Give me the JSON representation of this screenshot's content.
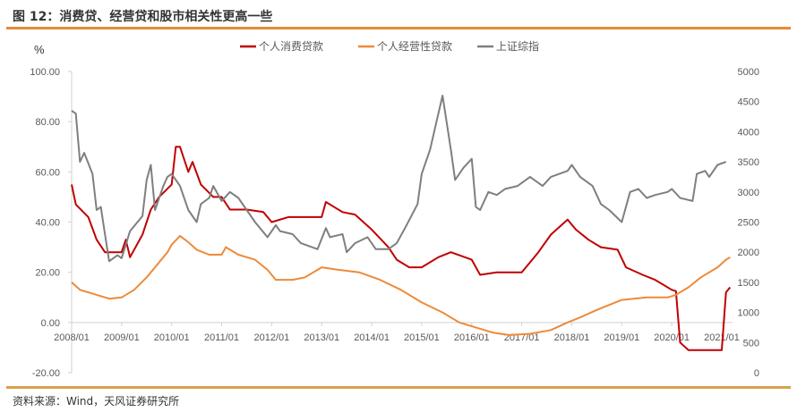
{
  "title": "图 12：消费贷、经营贷和股市相关性更高一些",
  "source": "资料来源：Wind，天风证券研究所",
  "chart_data": {
    "type": "line",
    "ylabel": "%",
    "ylim": [
      -20,
      100
    ],
    "y2lim": [
      0,
      5000
    ],
    "yticks": [
      "100.00",
      "80.00",
      "60.00",
      "40.00",
      "20.00",
      "0.00",
      "-20.00"
    ],
    "y2ticks": [
      "5000",
      "4500",
      "4000",
      "3500",
      "3000",
      "2500",
      "2000",
      "1500",
      "1000",
      "500",
      "0"
    ],
    "xticks": [
      "2008/01",
      "2009/01",
      "2010/01",
      "2011/01",
      "2012/01",
      "2013/01",
      "2014/01",
      "2015/01",
      "2016/01",
      "2017/01",
      "2018/01",
      "2019/01",
      "2020/01",
      "2021/01"
    ],
    "grid": false,
    "legend_position": "top",
    "series": [
      {
        "name": "个人消费贷款",
        "axis": "left",
        "color": "#c00000",
        "points": [
          [
            "2008/01",
            55
          ],
          [
            "2008/02",
            47
          ],
          [
            "2008/05",
            42
          ],
          [
            "2008/07",
            33
          ],
          [
            "2008/09",
            28
          ],
          [
            "2009/01",
            28
          ],
          [
            "2009/02",
            33
          ],
          [
            "2009/03",
            26
          ],
          [
            "2009/06",
            35
          ],
          [
            "2009/08",
            45
          ],
          [
            "2009/10",
            50
          ],
          [
            "2010/01",
            55
          ],
          [
            "2010/02",
            70
          ],
          [
            "2010/03",
            70
          ],
          [
            "2010/05",
            60
          ],
          [
            "2010/06",
            64
          ],
          [
            "2010/08",
            55
          ],
          [
            "2010/11",
            50
          ],
          [
            "2011/01",
            50
          ],
          [
            "2011/03",
            45
          ],
          [
            "2011/07",
            45
          ],
          [
            "2011/11",
            44
          ],
          [
            "2012/01",
            40
          ],
          [
            "2012/05",
            42
          ],
          [
            "2012/08",
            42
          ],
          [
            "2013/01",
            42
          ],
          [
            "2013/02",
            48
          ],
          [
            "2013/06",
            44
          ],
          [
            "2013/09",
            43
          ],
          [
            "2014/01",
            37
          ],
          [
            "2014/05",
            30
          ],
          [
            "2014/07",
            25
          ],
          [
            "2014/10",
            22
          ],
          [
            "2015/01",
            22
          ],
          [
            "2015/05",
            26
          ],
          [
            "2015/08",
            28
          ],
          [
            "2016/01",
            25
          ],
          [
            "2016/03",
            19
          ],
          [
            "2016/07",
            20
          ],
          [
            "2017/01",
            20
          ],
          [
            "2017/05",
            28
          ],
          [
            "2017/08",
            35
          ],
          [
            "2017/12",
            41
          ],
          [
            "2018/02",
            37
          ],
          [
            "2018/05",
            33
          ],
          [
            "2018/08",
            30
          ],
          [
            "2018/12",
            29
          ],
          [
            "2019/02",
            22
          ],
          [
            "2019/06",
            19
          ],
          [
            "2019/09",
            17
          ],
          [
            "2020/01",
            13
          ],
          [
            "2020/02",
            12.5
          ],
          [
            "2020/03",
            -8
          ],
          [
            "2020/05",
            -11
          ],
          [
            "2020/08",
            -11
          ],
          [
            "2021/01",
            -11
          ],
          [
            "2021/02",
            12
          ],
          [
            "2021/03",
            14
          ]
        ]
      },
      {
        "name": "个人经营性贷款",
        "axis": "left",
        "color": "#ed8a3a",
        "points": [
          [
            "2008/01",
            16
          ],
          [
            "2008/03",
            13
          ],
          [
            "2008/07",
            11
          ],
          [
            "2008/10",
            9.5
          ],
          [
            "2009/01",
            10
          ],
          [
            "2009/04",
            13
          ],
          [
            "2009/07",
            18
          ],
          [
            "2009/09",
            22
          ],
          [
            "2009/12",
            28
          ],
          [
            "2010/01",
            31
          ],
          [
            "2010/03",
            34.5
          ],
          [
            "2010/05",
            32
          ],
          [
            "2010/07",
            29
          ],
          [
            "2010/10",
            27
          ],
          [
            "2011/01",
            27
          ],
          [
            "2011/02",
            30
          ],
          [
            "2011/05",
            27
          ],
          [
            "2011/09",
            25
          ],
          [
            "2011/12",
            21
          ],
          [
            "2012/02",
            17
          ],
          [
            "2012/06",
            17
          ],
          [
            "2012/09",
            18
          ],
          [
            "2013/01",
            22
          ],
          [
            "2013/05",
            21
          ],
          [
            "2013/10",
            20
          ],
          [
            "2014/03",
            17
          ],
          [
            "2014/08",
            13
          ],
          [
            "2015/01",
            8
          ],
          [
            "2015/06",
            4
          ],
          [
            "2015/10",
            0
          ],
          [
            "2016/02",
            -2
          ],
          [
            "2016/06",
            -4
          ],
          [
            "2016/10",
            -5
          ],
          [
            "2017/03",
            -4.5
          ],
          [
            "2017/08",
            -3
          ],
          [
            "2017/12",
            0
          ],
          [
            "2018/03",
            2
          ],
          [
            "2018/07",
            5
          ],
          [
            "2018/10",
            7
          ],
          [
            "2019/01",
            9
          ],
          [
            "2019/07",
            10
          ],
          [
            "2019/12",
            10
          ],
          [
            "2020/02",
            11
          ],
          [
            "2020/05",
            14
          ],
          [
            "2020/08",
            18
          ],
          [
            "2020/12",
            22
          ],
          [
            "2021/02",
            25
          ],
          [
            "2021/03",
            26
          ]
        ]
      },
      {
        "name": "上证综指",
        "axis": "right",
        "color": "#7f7f7f",
        "points": [
          [
            "2008/01",
            4350
          ],
          [
            "2008/02",
            4300
          ],
          [
            "2008/03",
            3500
          ],
          [
            "2008/04",
            3650
          ],
          [
            "2008/06",
            3300
          ],
          [
            "2008/07",
            2700
          ],
          [
            "2008/08",
            2750
          ],
          [
            "2008/09",
            2300
          ],
          [
            "2008/10",
            1850
          ],
          [
            "2008/12",
            1950
          ],
          [
            "2009/01",
            1900
          ],
          [
            "2009/03",
            2350
          ],
          [
            "2009/06",
            2600
          ],
          [
            "2009/07",
            3200
          ],
          [
            "2009/08",
            3450
          ],
          [
            "2009/09",
            2700
          ],
          [
            "2009/11",
            3100
          ],
          [
            "2009/12",
            3250
          ],
          [
            "2010/01",
            3300
          ],
          [
            "2010/03",
            3100
          ],
          [
            "2010/05",
            2700
          ],
          [
            "2010/07",
            2500
          ],
          [
            "2010/08",
            2800
          ],
          [
            "2010/10",
            2900
          ],
          [
            "2010/11",
            3100
          ],
          [
            "2011/01",
            2850
          ],
          [
            "2011/03",
            3000
          ],
          [
            "2011/05",
            2900
          ],
          [
            "2011/07",
            2700
          ],
          [
            "2011/09",
            2500
          ],
          [
            "2011/12",
            2250
          ],
          [
            "2012/02",
            2450
          ],
          [
            "2012/03",
            2350
          ],
          [
            "2012/06",
            2300
          ],
          [
            "2012/08",
            2150
          ],
          [
            "2012/12",
            2050
          ],
          [
            "2013/02",
            2400
          ],
          [
            "2013/03",
            2250
          ],
          [
            "2013/06",
            2300
          ],
          [
            "2013/07",
            2000
          ],
          [
            "2013/09",
            2150
          ],
          [
            "2013/12",
            2250
          ],
          [
            "2014/02",
            2050
          ],
          [
            "2014/05",
            2050
          ],
          [
            "2014/07",
            2150
          ],
          [
            "2014/09",
            2400
          ],
          [
            "2014/12",
            2800
          ],
          [
            "2015/01",
            3300
          ],
          [
            "2015/03",
            3700
          ],
          [
            "2015/05",
            4300
          ],
          [
            "2015/06",
            4600
          ],
          [
            "2015/08",
            3700
          ],
          [
            "2015/09",
            3200
          ],
          [
            "2015/11",
            3400
          ],
          [
            "2016/01",
            3550
          ],
          [
            "2016/02",
            2750
          ],
          [
            "2016/03",
            2700
          ],
          [
            "2016/05",
            3000
          ],
          [
            "2016/07",
            2950
          ],
          [
            "2016/09",
            3050
          ],
          [
            "2016/12",
            3100
          ],
          [
            "2017/01",
            3150
          ],
          [
            "2017/03",
            3250
          ],
          [
            "2017/06",
            3100
          ],
          [
            "2017/08",
            3250
          ],
          [
            "2017/12",
            3350
          ],
          [
            "2018/01",
            3450
          ],
          [
            "2018/03",
            3250
          ],
          [
            "2018/06",
            3100
          ],
          [
            "2018/08",
            2800
          ],
          [
            "2018/10",
            2700
          ],
          [
            "2019/01",
            2500
          ],
          [
            "2019/03",
            3000
          ],
          [
            "2019/05",
            3050
          ],
          [
            "2019/07",
            2900
          ],
          [
            "2019/09",
            2950
          ],
          [
            "2019/12",
            3000
          ],
          [
            "2020/01",
            3050
          ],
          [
            "2020/03",
            2900
          ],
          [
            "2020/06",
            2850
          ],
          [
            "2020/07",
            3300
          ],
          [
            "2020/09",
            3350
          ],
          [
            "2020/10",
            3250
          ],
          [
            "2020/12",
            3450
          ],
          [
            "2021/02",
            3500
          ]
        ]
      }
    ]
  }
}
